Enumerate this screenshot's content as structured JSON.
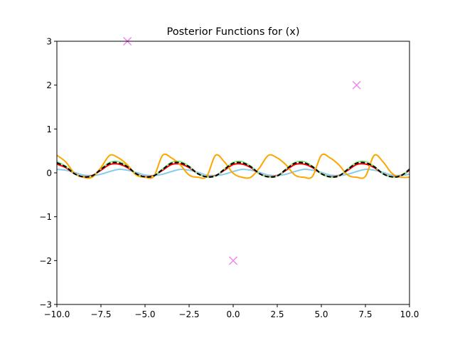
{
  "chart_data": {
    "type": "line",
    "title": "Posterior Functions for (x)",
    "xlabel": "",
    "ylabel": "",
    "xlim": [
      -10,
      10
    ],
    "ylim": [
      -3,
      3
    ],
    "x_ticks": [
      -10,
      -7.5,
      -5,
      -2.5,
      0,
      2.5,
      5,
      7.5,
      10
    ],
    "x_tick_labels": [
      "−10.0",
      "−7.5",
      "−5.0",
      "−2.5",
      "0.0",
      "2.5",
      "5.0",
      "7.5",
      "10.0"
    ],
    "y_ticks": [
      -3,
      -2,
      -1,
      0,
      1,
      2,
      3
    ],
    "y_tick_labels": [
      "−3",
      "−2",
      "−1",
      "0",
      "1",
      "2",
      "3"
    ],
    "grid": false,
    "legend": "none",
    "series": [
      {
        "kind": "line",
        "color": "#87ceeb",
        "dash": "solid",
        "x": [
          -10,
          -9.5,
          -9,
          -8.5,
          -8,
          -7.5,
          -7,
          -6.5,
          -6,
          -5.5,
          -5,
          -4.5,
          -4,
          -3.5,
          -3,
          -2.5,
          -2,
          -1.5,
          -1,
          -0.5,
          0,
          0.5,
          1,
          1.5,
          2,
          2.5,
          3,
          3.5,
          4,
          4.5,
          5,
          5.5,
          6,
          6.5,
          7,
          7.5,
          8,
          8.5,
          9,
          9.5,
          10
        ],
        "y": [
          0.08,
          0.06,
          0.01,
          -0.05,
          -0.06,
          -0.03,
          0.03,
          0.08,
          0.06,
          0.01,
          -0.05,
          -0.06,
          -0.03,
          0.03,
          0.08,
          0.06,
          0.01,
          -0.05,
          -0.06,
          -0.03,
          0.03,
          0.08,
          0.06,
          0.01,
          -0.05,
          -0.06,
          -0.03,
          0.03,
          0.08,
          0.06,
          0.01,
          -0.05,
          -0.06,
          -0.03,
          0.03,
          0.08,
          0.06,
          0.01,
          -0.05,
          -0.06,
          -0.03
        ]
      },
      {
        "kind": "line",
        "color": "#ff0000",
        "dash": "solid",
        "x": [
          -10,
          -9.5,
          -9,
          -8.5,
          -8,
          -7.5,
          -7,
          -6.5,
          -6,
          -5.5,
          -5,
          -4.5,
          -4,
          -3.5,
          -3,
          -2.5,
          -2,
          -1.5,
          -1,
          -0.5,
          0,
          0.5,
          1,
          1.5,
          2,
          2.5,
          3,
          3.5,
          4,
          4.5,
          5,
          5.5,
          6,
          6.5,
          7,
          7.5,
          8,
          8.5,
          9,
          9.5,
          10
        ],
        "y": [
          0.2,
          0.12,
          -0.02,
          -0.09,
          -0.06,
          0.06,
          0.19,
          0.2,
          0.12,
          -0.02,
          -0.09,
          -0.06,
          0.06,
          0.19,
          0.2,
          0.12,
          -0.02,
          -0.09,
          -0.06,
          0.06,
          0.19,
          0.2,
          0.12,
          -0.02,
          -0.09,
          -0.06,
          0.06,
          0.19,
          0.2,
          0.12,
          -0.02,
          -0.09,
          -0.06,
          0.06,
          0.19,
          0.2,
          0.12,
          -0.02,
          -0.09,
          -0.06,
          0.06
        ]
      },
      {
        "kind": "line",
        "color": "#90ee90",
        "dash": "solid",
        "x": [
          -10,
          -9.5,
          -9,
          -8.5,
          -8,
          -7.5,
          -7,
          -6.5,
          -6,
          -5.5,
          -5,
          -4.5,
          -4,
          -3.5,
          -3,
          -2.5,
          -2,
          -1.5,
          -1,
          -0.5,
          0,
          0.5,
          1,
          1.5,
          2,
          2.5,
          3,
          3.5,
          4,
          4.5,
          5,
          5.5,
          6,
          6.5,
          7,
          7.5,
          8,
          8.5,
          9,
          9.5,
          10
        ],
        "y": [
          0.26,
          0.15,
          -0.02,
          -0.1,
          -0.07,
          0.09,
          0.24,
          0.26,
          0.15,
          -0.02,
          -0.1,
          -0.07,
          0.09,
          0.24,
          0.26,
          0.15,
          -0.02,
          -0.1,
          -0.07,
          0.09,
          0.24,
          0.26,
          0.15,
          -0.02,
          -0.1,
          -0.07,
          0.09,
          0.24,
          0.26,
          0.15,
          -0.02,
          -0.1,
          -0.07,
          0.09,
          0.24,
          0.26,
          0.15,
          -0.02,
          -0.1,
          -0.07,
          0.09
        ]
      },
      {
        "kind": "line",
        "color": "#ffa500",
        "dash": "solid",
        "x": [
          -10,
          -9.5,
          -9,
          -8.5,
          -8,
          -7.5,
          -7,
          -6.5,
          -6,
          -5.5,
          -5,
          -4.5,
          -4,
          -3.5,
          -3,
          -2.5,
          -2,
          -1.5,
          -1,
          -0.5,
          0,
          0.5,
          1,
          1.5,
          2,
          2.5,
          3,
          3.5,
          4,
          4.5,
          5,
          5.5,
          6,
          6.5,
          7,
          7.5,
          8,
          8.5,
          9,
          9.5,
          10
        ],
        "y": [
          0.4,
          0.25,
          -0.01,
          -0.1,
          -0.1,
          0.12,
          0.4,
          0.34,
          0.18,
          -0.05,
          -0.1,
          -0.08,
          0.4,
          0.34,
          0.18,
          -0.05,
          -0.1,
          -0.08,
          0.4,
          0.25,
          -0.01,
          -0.1,
          -0.1,
          0.12,
          0.4,
          0.34,
          0.18,
          -0.05,
          -0.1,
          -0.08,
          0.4,
          0.34,
          0.18,
          -0.05,
          -0.1,
          -0.08,
          0.4,
          0.25,
          -0.01,
          -0.1,
          -0.1
        ]
      },
      {
        "kind": "line",
        "color": "#000000",
        "dash": "dashed",
        "x": [
          -10,
          -9.5,
          -9,
          -8.5,
          -8,
          -7.5,
          -7,
          -6.5,
          -6,
          -5.5,
          -5,
          -4.5,
          -4,
          -3.5,
          -3,
          -2.5,
          -2,
          -1.5,
          -1,
          -0.5,
          0,
          0.5,
          1,
          1.5,
          2,
          2.5,
          3,
          3.5,
          4,
          4.5,
          5,
          5.5,
          6,
          6.5,
          7,
          7.5,
          8,
          8.5,
          9,
          9.5,
          10
        ],
        "y": [
          0.23,
          0.14,
          -0.02,
          -0.09,
          -0.07,
          0.08,
          0.22,
          0.23,
          0.14,
          -0.02,
          -0.09,
          -0.07,
          0.08,
          0.22,
          0.23,
          0.14,
          -0.02,
          -0.09,
          -0.07,
          0.08,
          0.22,
          0.23,
          0.14,
          -0.02,
          -0.09,
          -0.07,
          0.08,
          0.22,
          0.23,
          0.14,
          -0.02,
          -0.09,
          -0.07,
          0.08,
          0.22,
          0.23,
          0.14,
          -0.02,
          -0.09,
          -0.07,
          0.08
        ]
      },
      {
        "kind": "scatter",
        "marker": "x",
        "color": "#ee82ee",
        "x": [
          -6,
          0,
          7
        ],
        "y": [
          3,
          -2,
          2
        ]
      }
    ]
  }
}
